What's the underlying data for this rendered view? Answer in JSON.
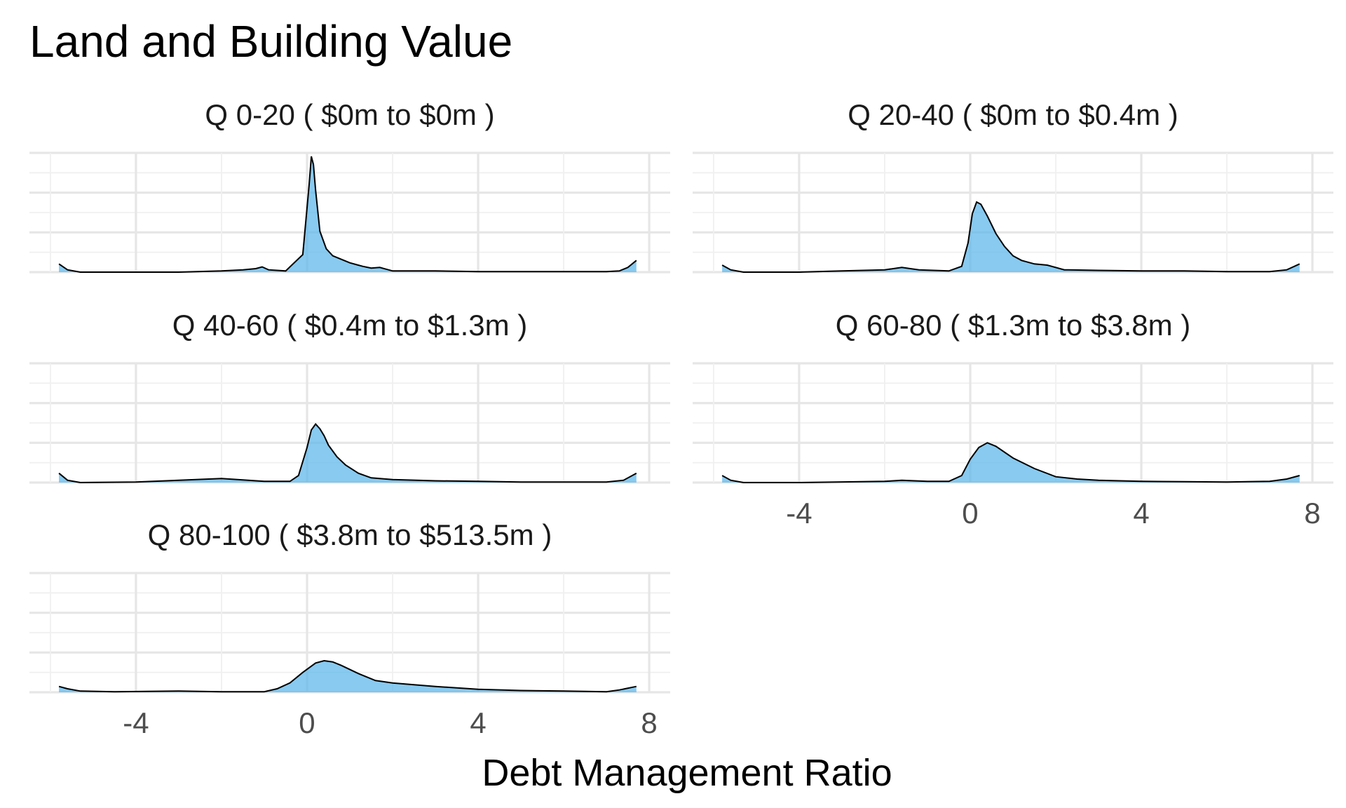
{
  "chart_data": {
    "type": "area",
    "title": "Land and Building Value",
    "xlabel": "Debt Management Ratio",
    "ylabel": "",
    "xlim": [
      -6,
      8
    ],
    "x_ticks": [
      -4,
      0,
      4,
      8
    ],
    "x_tick_labels": [
      "-4",
      "0",
      "4",
      "8"
    ],
    "grid": true,
    "legend": "none",
    "fill_color": "#56B4E9",
    "line_color": "#000000",
    "facets": [
      {
        "label": "Q 0-20   ( $0m to $0m )",
        "x": [
          -5.8,
          -5.6,
          -5.3,
          -4,
          -3,
          -2,
          -1.5,
          -1.2,
          -1.05,
          -0.9,
          -0.5,
          -0.1,
          0.05,
          0.1,
          0.15,
          0.2,
          0.3,
          0.45,
          0.6,
          0.8,
          1.0,
          1.3,
          1.5,
          1.7,
          2,
          2.5,
          3,
          4,
          5,
          6,
          7,
          7.3,
          7.5,
          7.7
        ],
        "y": [
          0.07,
          0.02,
          0,
          0,
          0,
          0.01,
          0.02,
          0.03,
          0.045,
          0.02,
          0.01,
          0.15,
          0.75,
          0.99,
          0.92,
          0.7,
          0.35,
          0.2,
          0.14,
          0.11,
          0.08,
          0.05,
          0.035,
          0.04,
          0.01,
          0.01,
          0.01,
          0.005,
          0.005,
          0.005,
          0.005,
          0.01,
          0.04,
          0.1
        ]
      },
      {
        "label": "Q 20-40   ( $0m to $0.4m )",
        "x": [
          -5.8,
          -5.6,
          -5.3,
          -4,
          -3,
          -2,
          -1.6,
          -1.2,
          -0.5,
          -0.2,
          -0.05,
          0.05,
          0.15,
          0.25,
          0.4,
          0.6,
          0.8,
          1.0,
          1.2,
          1.5,
          1.8,
          2.2,
          3,
          4,
          5,
          6,
          7,
          7.4,
          7.7
        ],
        "y": [
          0.06,
          0.02,
          0,
          0,
          0.01,
          0.02,
          0.04,
          0.02,
          0.01,
          0.05,
          0.25,
          0.5,
          0.6,
          0.58,
          0.48,
          0.33,
          0.22,
          0.14,
          0.1,
          0.07,
          0.06,
          0.02,
          0.015,
          0.01,
          0.01,
          0.005,
          0.005,
          0.02,
          0.07
        ]
      },
      {
        "label": "Q 40-60   ( $0.4m to $1.3m )",
        "x": [
          -5.8,
          -5.6,
          -5.3,
          -4,
          -3,
          -2,
          -1,
          -0.4,
          -0.2,
          0,
          0.1,
          0.2,
          0.3,
          0.4,
          0.5,
          0.7,
          0.9,
          1.2,
          1.5,
          2,
          3,
          4,
          5,
          6,
          7,
          7.4,
          7.7
        ],
        "y": [
          0.08,
          0.02,
          0,
          0.005,
          0.02,
          0.035,
          0.01,
          0.01,
          0.06,
          0.3,
          0.45,
          0.5,
          0.46,
          0.4,
          0.32,
          0.22,
          0.15,
          0.08,
          0.04,
          0.025,
          0.015,
          0.01,
          0.005,
          0.005,
          0.005,
          0.02,
          0.08
        ]
      },
      {
        "label": "Q 60-80   ( $1.3m to $3.8m )",
        "x": [
          -5.8,
          -5.6,
          -5.3,
          -4,
          -2,
          -1.6,
          -1,
          -0.5,
          -0.2,
          0,
          0.2,
          0.4,
          0.6,
          1.0,
          1.5,
          2,
          2.5,
          3,
          4,
          5,
          6,
          7,
          7.4,
          7.7
        ],
        "y": [
          0.06,
          0.02,
          0,
          0,
          0.01,
          0.02,
          0.01,
          0.01,
          0.06,
          0.2,
          0.3,
          0.34,
          0.31,
          0.21,
          0.12,
          0.05,
          0.03,
          0.02,
          0.01,
          0.008,
          0.005,
          0.01,
          0.03,
          0.06
        ]
      },
      {
        "label": "Q 80-100   ( $3.8m to $513.5m )",
        "x": [
          -5.8,
          -5.6,
          -5.3,
          -4.5,
          -3,
          -2,
          -1,
          -0.7,
          -0.4,
          -0.1,
          0.2,
          0.4,
          0.6,
          0.8,
          1.2,
          1.6,
          2,
          3,
          4,
          5,
          6,
          7,
          7.3,
          7.7
        ],
        "y": [
          0.05,
          0.03,
          0.01,
          0.005,
          0.01,
          0.005,
          0.005,
          0.03,
          0.08,
          0.17,
          0.25,
          0.27,
          0.26,
          0.23,
          0.16,
          0.1,
          0.08,
          0.05,
          0.025,
          0.015,
          0.01,
          0.005,
          0.02,
          0.05
        ]
      }
    ]
  }
}
